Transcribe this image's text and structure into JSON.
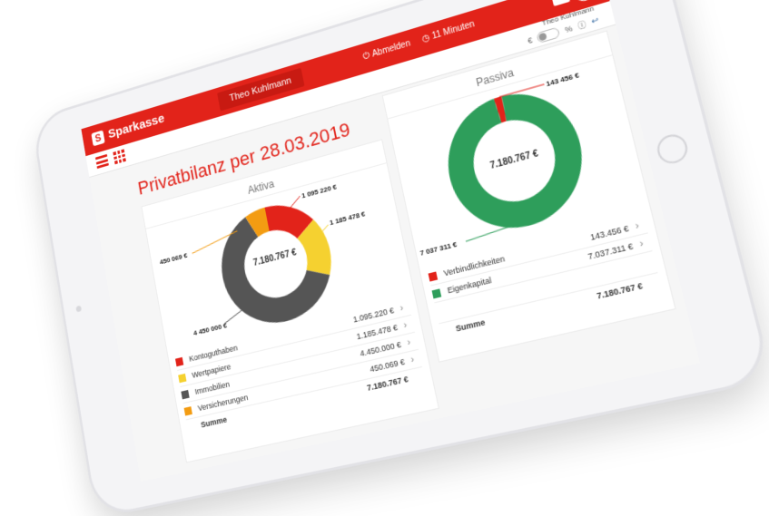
{
  "app": {
    "brand": "Sparkasse",
    "brand_symbol": "S",
    "user_tab": "Theo Kuhlmann",
    "logout_label": "Abmelden",
    "timer_label": "11 Minuten",
    "sub_user": "Theo Kuhlmann",
    "toggle_left": "€",
    "toggle_right": "%"
  },
  "page": {
    "title": "Privatbilanz per 28.03.2019"
  },
  "aktiva": {
    "title": "Aktiva",
    "total_center": "7.180.767 €",
    "labels": {
      "kontoguthaben": "1 095 220 €",
      "wertpapiere": "1 185 478 €",
      "immobilien": "4 450 000 €",
      "versicherungen": "450 069 €"
    },
    "legend": [
      {
        "name": "Kontoguthaben",
        "value": "1.095.220 €",
        "color": "#e2231a"
      },
      {
        "name": "Wertpapiere",
        "value": "1.185.478 €",
        "color": "#f5d130"
      },
      {
        "name": "Immobilien",
        "value": "4.450.000 €",
        "color": "#555555"
      },
      {
        "name": "Versicherungen",
        "value": "450.069 €",
        "color": "#f39c12"
      }
    ],
    "sum_label": "Summe",
    "sum_value": "7.180.767 €"
  },
  "passiva": {
    "title": "Passiva",
    "total_center": "7.180.767 €",
    "labels": {
      "verbindlichkeiten": "143 456 €",
      "eigenkapital": "7 037 311 €"
    },
    "legend": [
      {
        "name": "Verbindlichkeiten",
        "value": "143.456 €",
        "color": "#e2231a"
      },
      {
        "name": "Eigenkapital",
        "value": "7.037.311 €",
        "color": "#2e9e5b"
      }
    ],
    "sum_label": "Summe",
    "sum_value": "7.180.767 €"
  },
  "chart_data": [
    {
      "type": "pie",
      "title": "Aktiva",
      "categories": [
        "Kontoguthaben",
        "Wertpapiere",
        "Immobilien",
        "Versicherungen"
      ],
      "values": [
        1095220,
        1185478,
        4450000,
        450069
      ],
      "colors": [
        "#e2231a",
        "#f5d130",
        "#555555",
        "#f39c12"
      ]
    },
    {
      "type": "pie",
      "title": "Passiva",
      "categories": [
        "Verbindlichkeiten",
        "Eigenkapital"
      ],
      "values": [
        143456,
        7037311
      ],
      "colors": [
        "#e2231a",
        "#2e9e5b"
      ]
    }
  ]
}
